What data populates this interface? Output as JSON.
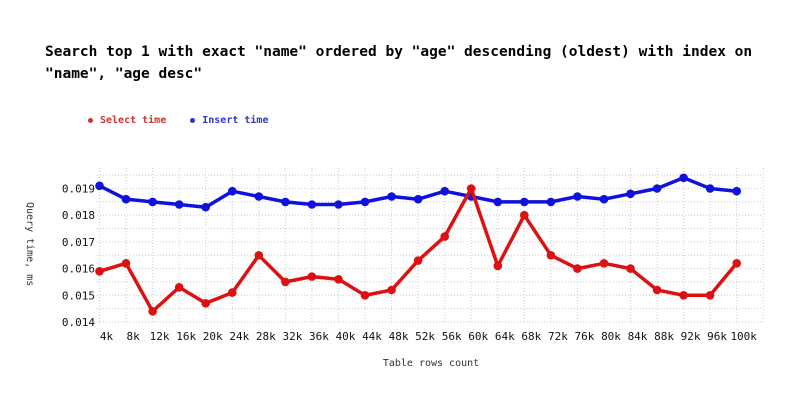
{
  "title": {
    "text": "Search top 1 with exact \"name\" ordered by \"age\" descending (oldest) with index on \"name\", \"age desc\""
  },
  "legend": [
    {
      "label": "Select time",
      "color": "#cc3333",
      "bullet": "circle"
    },
    {
      "label": "Insert time",
      "color": "#3333cc",
      "bullet": "circle"
    }
  ],
  "chart_data": {
    "type": "line",
    "title": "Search top 1 with exact \"name\" ordered by \"age\" descending (oldest) with index on \"name\", \"age desc\"",
    "xlabel": "Table rows count",
    "ylabel": "Query time, ms",
    "categories": [
      "4k",
      "8k",
      "12k",
      "16k",
      "20k",
      "24k",
      "28k",
      "32k",
      "36k",
      "40k",
      "44k",
      "48k",
      "52k",
      "56k",
      "60k",
      "64k",
      "68k",
      "72k",
      "76k",
      "80k",
      "84k",
      "88k",
      "92k",
      "96k",
      "100k"
    ],
    "series": [
      {
        "name": "Select time",
        "color": "#dd1111",
        "values": [
          0.0159,
          0.0162,
          0.0144,
          0.0153,
          0.0147,
          0.0151,
          0.0165,
          0.0155,
          0.0157,
          0.0156,
          0.015,
          0.0152,
          0.0163,
          0.0172,
          0.019,
          0.0161,
          0.018,
          0.0165,
          0.016,
          0.0162,
          0.016,
          0.0152,
          0.015,
          0.015,
          0.0162
        ]
      },
      {
        "name": "Insert time",
        "color": "#1111dd",
        "values": [
          0.0191,
          0.0186,
          0.0185,
          0.0184,
          0.0183,
          0.0189,
          0.0187,
          0.0185,
          0.0184,
          0.0184,
          0.0185,
          0.0187,
          0.0186,
          0.0189,
          0.0187,
          0.0185,
          0.0185,
          0.0185,
          0.0187,
          0.0186,
          0.0188,
          0.019,
          0.0194,
          0.019,
          0.0189
        ]
      }
    ],
    "y_ticks": [
      "0.014",
      "0.015",
      "0.016",
      "0.017",
      "0.018",
      "0.019"
    ],
    "ylim": [
      0.014,
      0.0198
    ],
    "grid": true,
    "minor_grid_step": 0.0005,
    "legend_position": "top-left"
  }
}
